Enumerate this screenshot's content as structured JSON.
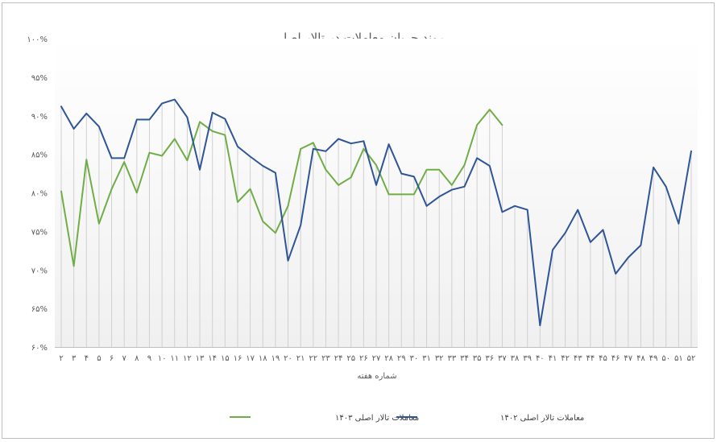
{
  "chart_data": {
    "type": "line",
    "title": "روند جریان معاملات در تالار اصلی",
    "xlabel": "شماره هفته",
    "ylabel": "",
    "ylim": [
      60,
      100
    ],
    "yticks": [
      "۶۰%",
      "۶۵%",
      "۷۰%",
      "۷۵%",
      "۸۰%",
      "۸۵%",
      "۹۰%",
      "۹۵%",
      "۱۰۰%"
    ],
    "categories": [
      "۲",
      "۳",
      "۴",
      "۵",
      "۶",
      "۷",
      "۸",
      "۹",
      "۱۰",
      "۱۱",
      "۱۲",
      "۱۳",
      "۱۴",
      "۱۵",
      "۱۶",
      "۱۷",
      "۱۸",
      "۱۹",
      "۲۰",
      "۲۱",
      "۲۲",
      "۲۳",
      "۲۴",
      "۲۵",
      "۲۶",
      "۲۷",
      "۲۸",
      "۲۹",
      "۳۰",
      "۳۱",
      "۳۲",
      "۳۳",
      "۳۴",
      "۳۵",
      "۳۶",
      "۳۷",
      "۳۸",
      "۳۹",
      "۴۰",
      "۴۱",
      "۴۲",
      "۴۳",
      "۴۴",
      "۴۵",
      "۴۶",
      "۴۷",
      "۴۸",
      "۴۹",
      "۵۰",
      "۵۱",
      "۵۲"
    ],
    "legend_position": "bottom",
    "gridlines": "vertical-drop-lines",
    "series": [
      {
        "name": "معاملات تالار اصلی ۱۴۰۳",
        "color": "#70ad47",
        "values": [
          80.2,
          70.5,
          84.3,
          76.0,
          80.5,
          84.0,
          80.0,
          85.2,
          84.8,
          87.0,
          84.2,
          89.2,
          88.0,
          87.5,
          78.8,
          80.5,
          76.3,
          74.8,
          78.3,
          85.7,
          86.5,
          83.0,
          81.0,
          82.0,
          85.7,
          83.6,
          79.8,
          79.8,
          79.8,
          83.0,
          83.0,
          81.0,
          83.6,
          88.8,
          90.8,
          88.8,
          null,
          null,
          null,
          null,
          null,
          null,
          null,
          null,
          null,
          null,
          null,
          null,
          null,
          null,
          null
        ]
      },
      {
        "name": "معاملات تالار اصلی ۱۴۰۲",
        "color": "#2f5597",
        "values": [
          91.2,
          88.3,
          90.3,
          88.6,
          84.5,
          84.5,
          89.5,
          89.5,
          91.6,
          92.1,
          89.8,
          83.0,
          90.4,
          89.6,
          86.0,
          84.7,
          83.5,
          82.6,
          71.2,
          75.8,
          85.7,
          85.4,
          87.0,
          86.4,
          86.7,
          81.0,
          86.3,
          82.5,
          82.1,
          78.3,
          79.5,
          80.4,
          80.8,
          84.5,
          83.5,
          77.5,
          78.3,
          77.8,
          62.8,
          72.6,
          74.8,
          77.8,
          73.6,
          75.2,
          69.5,
          71.6,
          73.2,
          83.3,
          80.8,
          76.0,
          85.4
        ]
      }
    ]
  }
}
